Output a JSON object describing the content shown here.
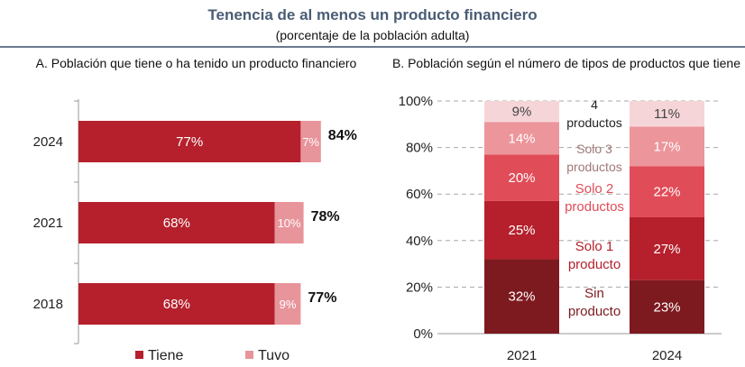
{
  "title": "Tenencia de al menos un producto financiero",
  "subtitle": "(porcentaje de la población adulta)",
  "chart_data": [
    {
      "type": "bar",
      "orientation": "horizontal",
      "stacked": true,
      "title": "A. Población que tiene o ha tenido un producto financiero",
      "categories": [
        "2024",
        "2021",
        "2018"
      ],
      "series": [
        {
          "name": "Tiene",
          "values": [
            77,
            68,
            68
          ],
          "labels": [
            "77%",
            "68%",
            "68%"
          ],
          "color": "#b5202c"
        },
        {
          "name": "Tuvo",
          "values": [
            7,
            10,
            9
          ],
          "labels": [
            "7%",
            "10%",
            "9%"
          ],
          "color": "#e8949b"
        }
      ],
      "totals": [
        84,
        78,
        77
      ],
      "total_labels": [
        "84%",
        "78%",
        "77%"
      ],
      "legend": "bottom",
      "grid": false
    },
    {
      "type": "bar",
      "orientation": "vertical",
      "stacked": true,
      "title": "B. Población según el número de tipos de productos que tiene",
      "categories": [
        "2021",
        "2024"
      ],
      "ylim": [
        0,
        100
      ],
      "yticks": [
        "0%",
        "20%",
        "40%",
        "60%",
        "80%",
        "100%"
      ],
      "grid": true,
      "series": [
        {
          "name": "Sin producto",
          "values": [
            32,
            23
          ],
          "labels": [
            "32%",
            "23%"
          ],
          "color": "#7d1a1f"
        },
        {
          "name": "Solo 1 producto",
          "values": [
            25,
            27
          ],
          "labels": [
            "25%",
            "27%"
          ],
          "color": "#b5202c"
        },
        {
          "name": "Solo 2 productos",
          "values": [
            20,
            22
          ],
          "labels": [
            "20%",
            "22%"
          ],
          "color": "#e04c58"
        },
        {
          "name": "Solo 3 productos",
          "values": [
            14,
            17
          ],
          "labels": [
            "14%",
            "17%"
          ],
          "color": "#ec959b"
        },
        {
          "name": "4 productos",
          "values": [
            9,
            11
          ],
          "labels": [
            "9%",
            "11%"
          ],
          "color": "#f6d5d8"
        }
      ],
      "inline_labels": [
        {
          "lines": [
            "Sin",
            "producto"
          ],
          "color": "#7d1a1f"
        },
        {
          "lines": [
            "Solo 1",
            "producto"
          ],
          "color": "#b5202c"
        },
        {
          "lines": [
            "Solo 2",
            "productos"
          ],
          "color": "#e04c58"
        },
        {
          "lines": [
            "Solo 3",
            "productos"
          ],
          "color": "#a07878"
        },
        {
          "lines": [
            "4",
            "productos"
          ],
          "color": "#222222"
        }
      ]
    }
  ]
}
